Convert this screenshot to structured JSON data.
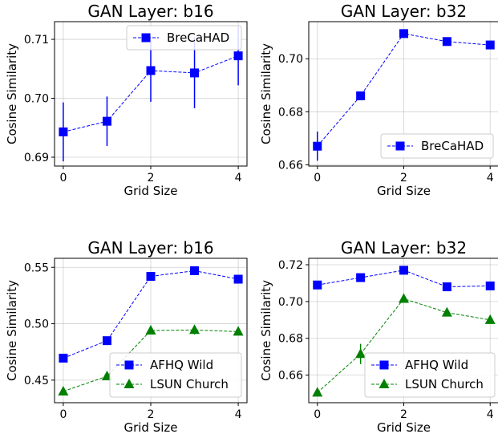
{
  "chart_data": [
    {
      "type": "line",
      "title": "GAN Layer: b16",
      "xlabel": "Grid Size",
      "ylabel": "Cosine Similarity",
      "xlim": [
        -0.2,
        4.2
      ],
      "ylim": [
        0.6885,
        0.713
      ],
      "xticks": [
        0,
        2,
        4
      ],
      "xtick_labels": [
        "0",
        "2",
        "4"
      ],
      "yticks": [
        0.69,
        0.7,
        0.71
      ],
      "ytick_labels": [
        "0.69",
        "0.70",
        "0.71"
      ],
      "grid": true,
      "legend": "top-right",
      "series": [
        {
          "name": "BreCaHAD",
          "color": "#0000ff",
          "marker": "square",
          "x": [
            0,
            1,
            2,
            3,
            4
          ],
          "y": [
            0.6943,
            0.6961,
            0.7047,
            0.7043,
            0.7072
          ],
          "err": [
            0.005,
            0.0042,
            0.0053,
            0.006,
            0.005
          ]
        }
      ]
    },
    {
      "type": "line",
      "title": "GAN Layer: b32",
      "xlabel": "Grid Size",
      "ylabel": "Cosine Similarity",
      "xlim": [
        -0.2,
        4.2
      ],
      "ylim": [
        0.6595,
        0.714
      ],
      "xticks": [
        0,
        2,
        4
      ],
      "xtick_labels": [
        "0",
        "2",
        "4"
      ],
      "yticks": [
        0.66,
        0.68,
        0.7
      ],
      "ytick_labels": [
        "0.66",
        "0.68",
        "0.70"
      ],
      "grid": true,
      "legend": "bottom-right",
      "series": [
        {
          "name": "BreCaHAD",
          "color": "#0000ff",
          "marker": "square",
          "x": [
            0,
            1,
            2,
            3,
            4
          ],
          "y": [
            0.667,
            0.686,
            0.7095,
            0.7065,
            0.7052
          ],
          "err": [
            0.0055,
            0.001,
            0.001,
            0.0008,
            0.0008
          ]
        }
      ]
    },
    {
      "type": "line",
      "title": "GAN Layer: b16",
      "xlabel": "Grid Size",
      "ylabel": "Cosine Similarity",
      "xlim": [
        -0.2,
        4.2
      ],
      "ylim": [
        0.43,
        0.558
      ],
      "xticks": [
        0,
        2,
        4
      ],
      "xtick_labels": [
        "0",
        "2",
        "4"
      ],
      "yticks": [
        0.45,
        0.5,
        0.55
      ],
      "ytick_labels": [
        "0.45",
        "0.50",
        "0.55"
      ],
      "grid": true,
      "legend": "bottom-right",
      "series": [
        {
          "name": "AFHQ Wild",
          "color": "#0000ff",
          "marker": "square",
          "x": [
            0,
            1,
            2,
            3,
            4
          ],
          "y": [
            0.4695,
            0.485,
            0.542,
            0.547,
            0.5395
          ],
          "err": [
            0.0015,
            0.0015,
            0.0015,
            0.0015,
            0.0015
          ]
        },
        {
          "name": "LSUN Church",
          "color": "#008000",
          "marker": "triangle",
          "x": [
            0,
            1,
            2,
            3,
            4
          ],
          "y": [
            0.44,
            0.4535,
            0.494,
            0.4945,
            0.493
          ],
          "err": [
            0.002,
            0.002,
            0.0025,
            0.004,
            0.002
          ]
        }
      ]
    },
    {
      "type": "line",
      "title": "GAN Layer: b32",
      "xlabel": "Grid Size",
      "ylabel": "Cosine Similarity",
      "xlim": [
        -0.2,
        4.2
      ],
      "ylim": [
        0.645,
        0.7235
      ],
      "xticks": [
        0,
        2,
        4
      ],
      "xtick_labels": [
        "0",
        "2",
        "4"
      ],
      "yticks": [
        0.66,
        0.68,
        0.7,
        0.72
      ],
      "ytick_labels": [
        "0.66",
        "0.68",
        "0.70",
        "0.72"
      ],
      "grid": true,
      "legend": "bottom-right",
      "series": [
        {
          "name": "AFHQ Wild",
          "color": "#0000ff",
          "marker": "square",
          "x": [
            0,
            1,
            2,
            3,
            4
          ],
          "y": [
            0.709,
            0.713,
            0.717,
            0.708,
            0.7085
          ],
          "err": [
            0.0008,
            0.0008,
            0.0008,
            0.0008,
            0.0008
          ]
        },
        {
          "name": "LSUN Church",
          "color": "#008000",
          "marker": "triangle",
          "x": [
            0,
            1,
            2,
            3,
            4
          ],
          "y": [
            0.6505,
            0.6715,
            0.7015,
            0.694,
            0.69
          ],
          "err": [
            0.001,
            0.0055,
            0.0015,
            0.002,
            0.001
          ]
        }
      ]
    }
  ]
}
